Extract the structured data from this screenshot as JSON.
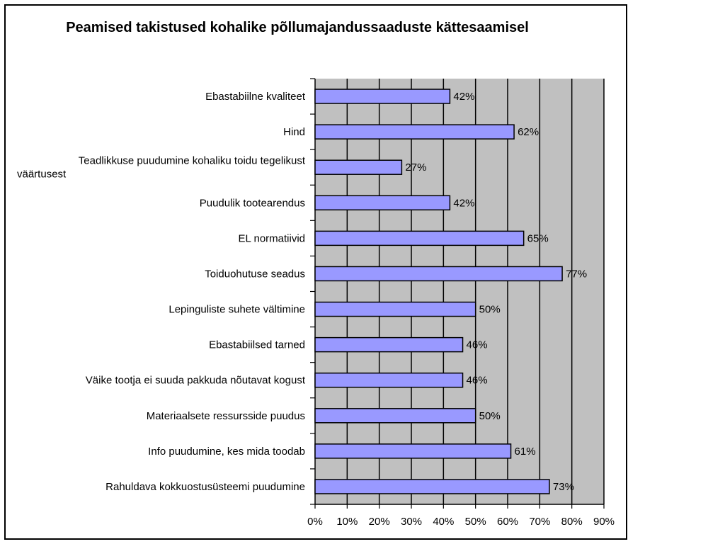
{
  "chart_data": {
    "type": "bar",
    "orientation": "horizontal",
    "title": "Peamised takistused kohalike põllumajandussaaduste kättesaamisel",
    "categories": [
      "Ebastabiilne kvaliteet",
      "Hind",
      "Teadlikkuse puudumine kohaliku toidu tegelikust väärtusest",
      "Puudulik tootearendus",
      "EL normatiivid",
      "Toiduohutuse seadus",
      "Lepinguliste suhete vältimine",
      "Ebastabiilsed tarned",
      "Väike tootja ei suuda pakkuda nõutavat kogust",
      "Materiaalsete ressursside puudus",
      "Info puudumine, kes mida toodab",
      "Rahuldava kokkuostusüsteemi puudumine"
    ],
    "category_lines": [
      [
        "Ebastabiilne kvaliteet"
      ],
      [
        "Hind"
      ],
      [
        "Teadlikkuse puudumine kohaliku toidu tegelikust",
        "väärtusest"
      ],
      [
        "Puudulik tootearendus"
      ],
      [
        "EL normatiivid"
      ],
      [
        "Toiduohutuse seadus"
      ],
      [
        "Lepinguliste suhete vältimine"
      ],
      [
        "Ebastabiilsed tarned"
      ],
      [
        "Väike tootja ei suuda pakkuda nõutavat kogust"
      ],
      [
        "Materiaalsete ressursside puudus"
      ],
      [
        "Info puudumine, kes mida toodab"
      ],
      [
        "Rahuldava kokkuostusüsteemi puudumine"
      ]
    ],
    "values": [
      42,
      62,
      27,
      42,
      65,
      77,
      50,
      46,
      46,
      50,
      61,
      73
    ],
    "data_labels": [
      "42%",
      "62%",
      "27%",
      "42%",
      "65%",
      "77%",
      "50%",
      "46%",
      "46%",
      "50%",
      "61%",
      "73%"
    ],
    "xlim": [
      0,
      90
    ],
    "xticks": [
      0,
      10,
      20,
      30,
      40,
      50,
      60,
      70,
      80,
      90
    ],
    "xtick_labels": [
      "0%",
      "10%",
      "20%",
      "30%",
      "40%",
      "50%",
      "60%",
      "70%",
      "80%",
      "90%"
    ],
    "grid": true,
    "legend": "none",
    "colors": {
      "bar_fill": "#9999ff",
      "bar_stroke": "#000000",
      "plot_background": "#c0c0c0",
      "grid": "#000000"
    }
  }
}
